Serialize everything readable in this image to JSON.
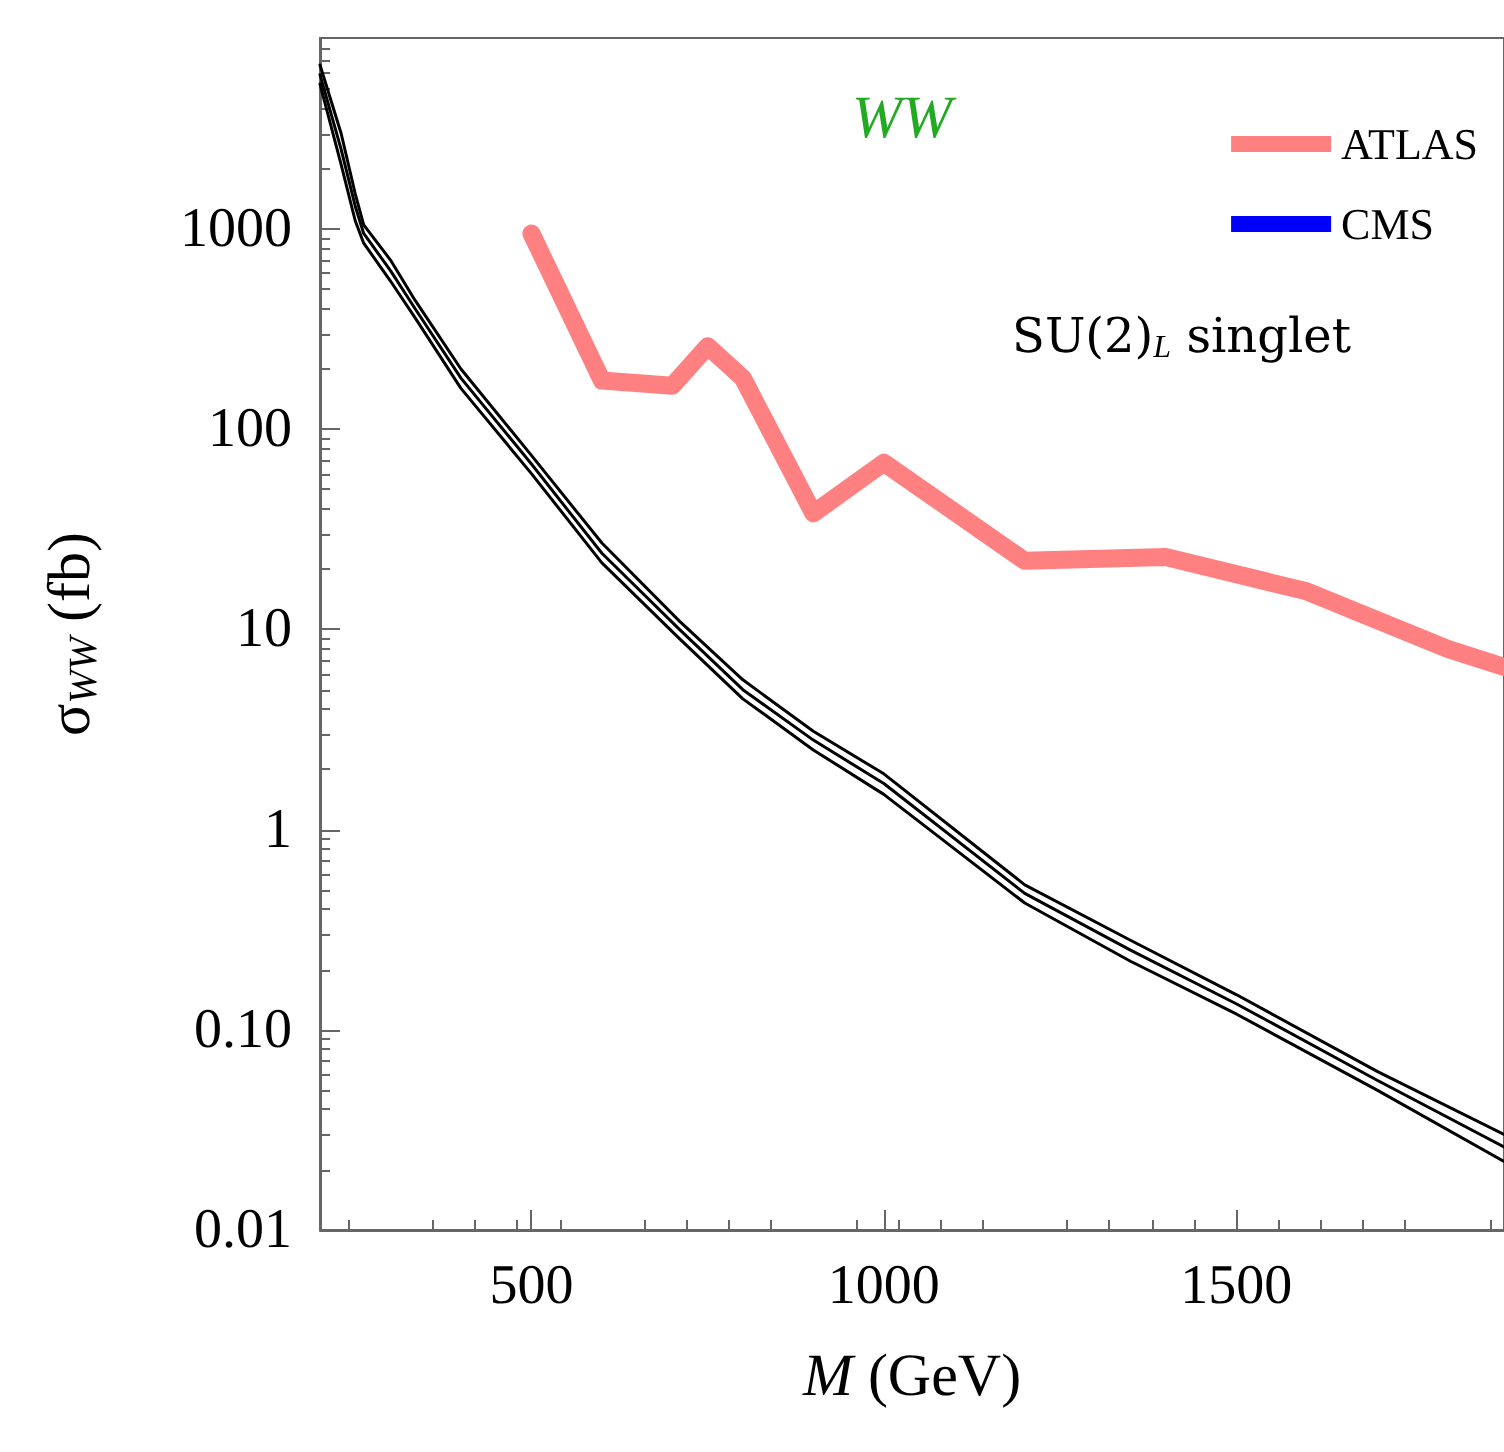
{
  "chart_data": {
    "type": "line",
    "xlabel": "M (GeV)",
    "ylabel": "σ$_{WW}$ (fb)",
    "annotations": [
      "WW",
      "SU(2)$_{L}$ singlet"
    ],
    "log": "y",
    "xlim": [
      200,
      1880
    ],
    "xticks": [
      500,
      1000,
      1500
    ],
    "ylim": [
      0.01,
      9000
    ],
    "yticks": [
      0.01,
      {
        "value": 0.1,
        "label": "0.10"
      },
      1,
      10,
      100,
      1000
    ],
    "legend": "top right",
    "grid": false,
    "marker": "none",
    "line_style": "solid",
    "series": [
      {
        "name": "ATLAS",
        "color": "#ff8080",
        "x": [
          500,
          600,
          700,
          750,
          800,
          900,
          1000,
          1200,
          1400,
          1600,
          1800,
          1880
        ],
        "values": [
          950,
          175,
          165,
          260,
          180,
          38,
          68,
          22,
          23,
          15.5,
          8,
          6.5
        ]
      },
      {
        "name": "CMS",
        "color": "#0000ff"
      },
      {
        "color": "#000000",
        "x": [
          200,
          230,
          250,
          262,
          300,
          335,
          400,
          500,
          600,
          710,
          800,
          900,
          1000,
          1200,
          1350,
          1500,
          1700,
          1880
        ],
        "values": [
          6600,
          3000,
          1500,
          1050,
          700,
          440,
          200,
          74,
          27,
          11,
          5.6,
          3.1,
          1.9,
          0.53,
          0.28,
          0.15,
          0.062,
          0.03
        ]
      },
      {
        "color": "#000000",
        "x": [
          200,
          230,
          250,
          262,
          300,
          335,
          400,
          500,
          600,
          710,
          800,
          900,
          1000,
          1200,
          1350,
          1500,
          1700,
          1880
        ],
        "values": [
          5900,
          2500,
          1300,
          950,
          620,
          400,
          180,
          67,
          24,
          10,
          5,
          2.8,
          1.7,
          0.48,
          0.25,
          0.135,
          0.056,
          0.026
        ]
      },
      {
        "color": "#000000",
        "x": [
          200,
          230,
          250,
          262,
          300,
          335,
          400,
          500,
          600,
          710,
          800,
          900,
          1000,
          1200,
          1350,
          1500,
          1700,
          1880
        ],
        "values": [
          5300,
          2100,
          1100,
          850,
          550,
          360,
          160,
          60,
          21.5,
          9,
          4.5,
          2.5,
          1.5,
          0.43,
          0.22,
          0.12,
          0.05,
          0.022
        ]
      }
    ]
  }
}
